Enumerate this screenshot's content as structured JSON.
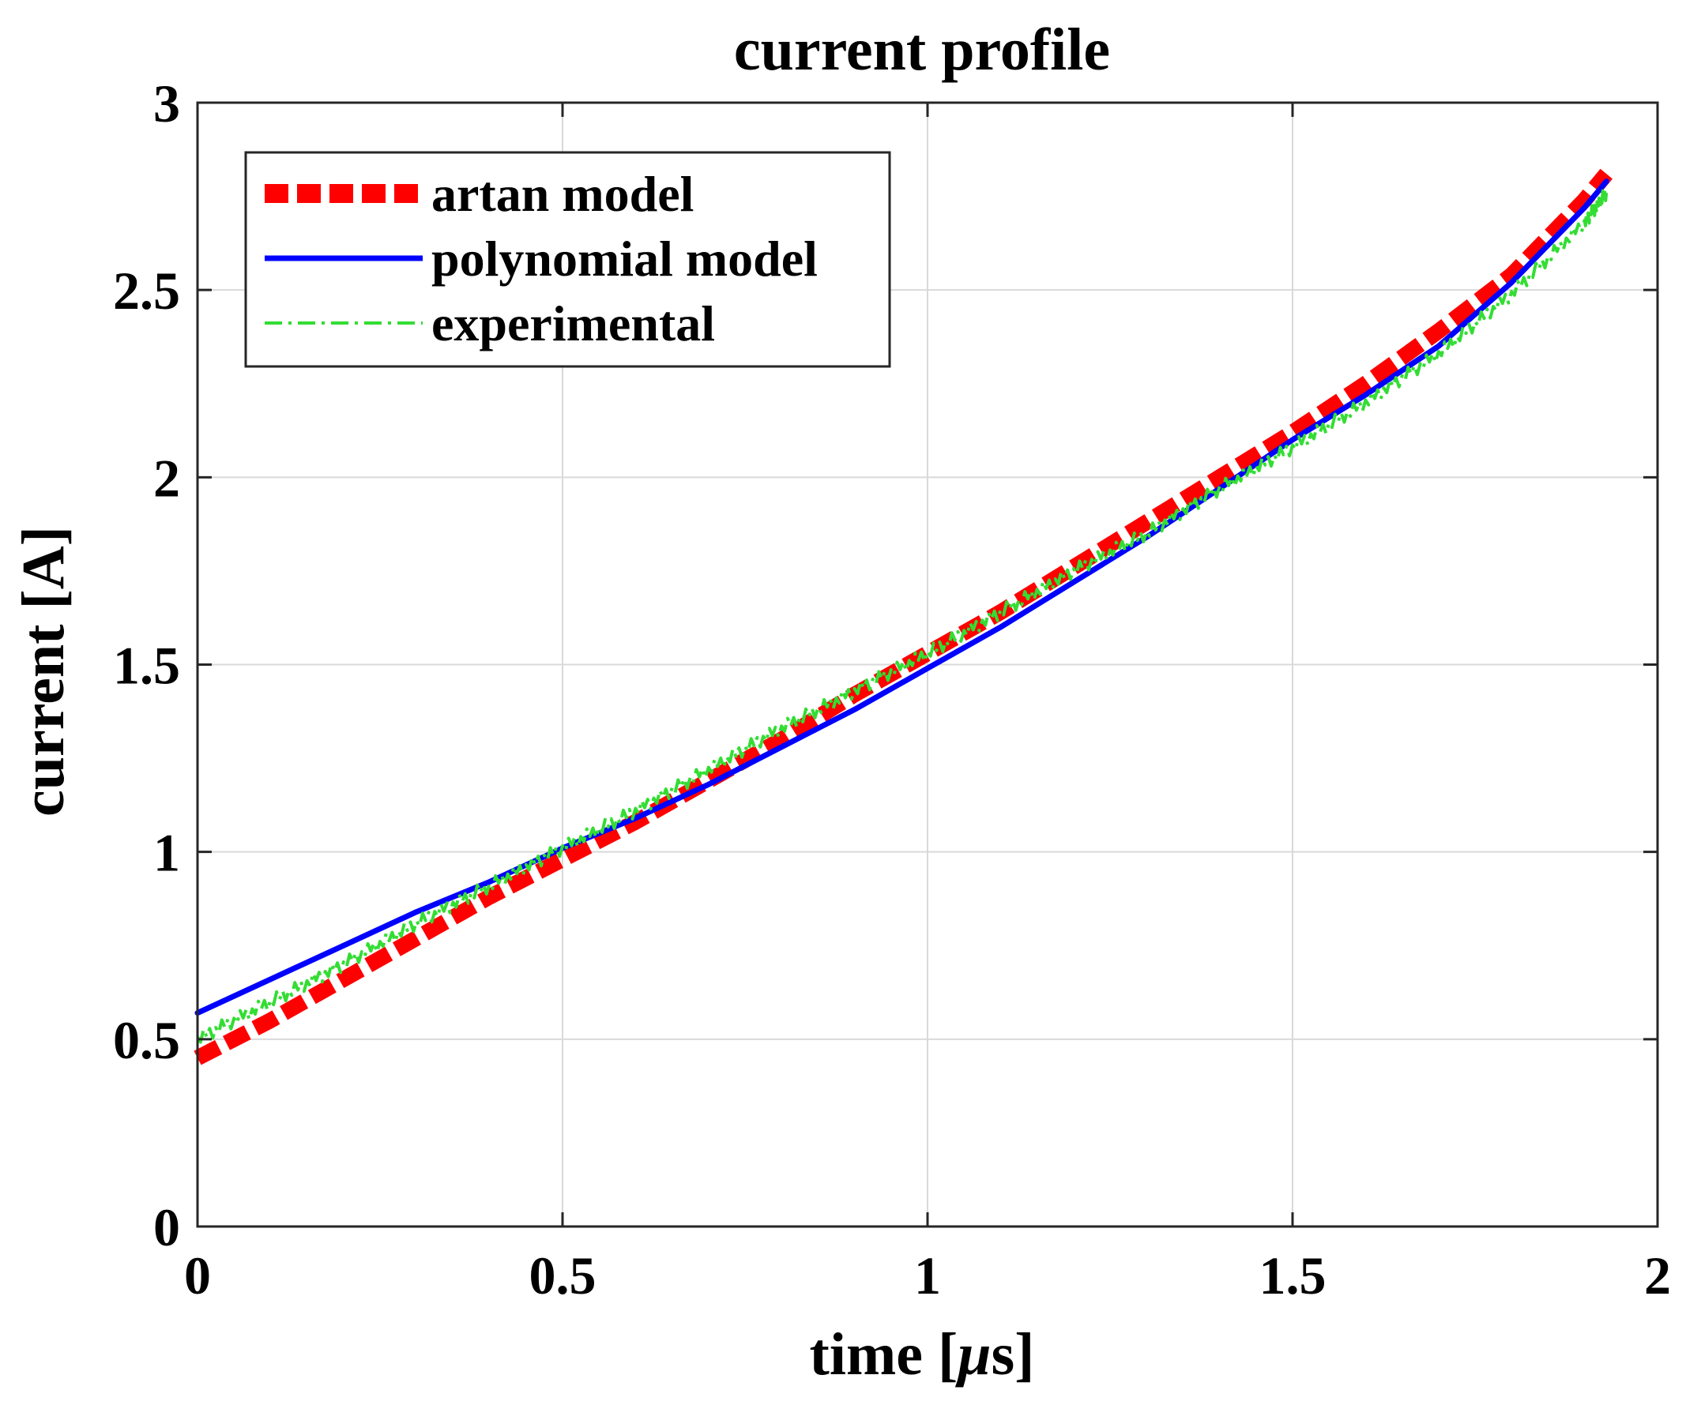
{
  "chart_data": {
    "type": "line",
    "title": "current profile",
    "xlabel": "time [",
    "xlabel_mu": "μ",
    "xlabel_end": "s]",
    "ylabel": "current [A]",
    "xlim": [
      0,
      2
    ],
    "ylim": [
      0,
      3
    ],
    "xticks": [
      0,
      0.5,
      1,
      1.5,
      2
    ],
    "xtick_labels": [
      "0",
      "0.5",
      "1",
      "1.5",
      "2"
    ],
    "yticks": [
      0,
      0.5,
      1,
      1.5,
      2,
      2.5,
      3
    ],
    "ytick_labels": [
      "0",
      "0.5",
      "1",
      "1.5",
      "2",
      "2.5",
      "3"
    ],
    "grid": true,
    "legend_position": "top-left",
    "series": [
      {
        "name": "artan model",
        "style": "dashed",
        "color": "#ff0000",
        "x": [
          0,
          0.1,
          0.2,
          0.3,
          0.4,
          0.5,
          0.6,
          0.7,
          0.8,
          0.9,
          1.0,
          1.1,
          1.2,
          1.3,
          1.4,
          1.5,
          1.6,
          1.7,
          1.8,
          1.9,
          1.93
        ],
        "y": [
          0.45,
          0.55,
          0.66,
          0.77,
          0.88,
          0.98,
          1.08,
          1.19,
          1.3,
          1.42,
          1.53,
          1.64,
          1.76,
          1.88,
          2.0,
          2.12,
          2.25,
          2.39,
          2.54,
          2.74,
          2.81
        ]
      },
      {
        "name": "polynomial model",
        "style": "solid",
        "color": "#0000ff",
        "x": [
          0,
          0.1,
          0.2,
          0.3,
          0.4,
          0.5,
          0.6,
          0.7,
          0.8,
          0.9,
          1.0,
          1.1,
          1.2,
          1.3,
          1.4,
          1.5,
          1.6,
          1.7,
          1.8,
          1.9,
          1.93
        ],
        "y": [
          0.57,
          0.66,
          0.75,
          0.84,
          0.92,
          1.01,
          1.09,
          1.18,
          1.28,
          1.38,
          1.49,
          1.6,
          1.72,
          1.84,
          1.97,
          2.1,
          2.22,
          2.35,
          2.52,
          2.72,
          2.79
        ]
      },
      {
        "name": "experimental",
        "style": "dashdot",
        "color": "#33dd33",
        "x": [
          0,
          0.1,
          0.2,
          0.3,
          0.4,
          0.5,
          0.6,
          0.7,
          0.8,
          0.9,
          1.0,
          1.1,
          1.2,
          1.3,
          1.4,
          1.5,
          1.6,
          1.7,
          1.8,
          1.9,
          1.93
        ],
        "y": [
          0.5,
          0.6,
          0.7,
          0.81,
          0.91,
          1.01,
          1.11,
          1.22,
          1.33,
          1.43,
          1.53,
          1.64,
          1.75,
          1.85,
          1.97,
          2.08,
          2.2,
          2.33,
          2.49,
          2.68,
          2.76
        ]
      }
    ]
  }
}
